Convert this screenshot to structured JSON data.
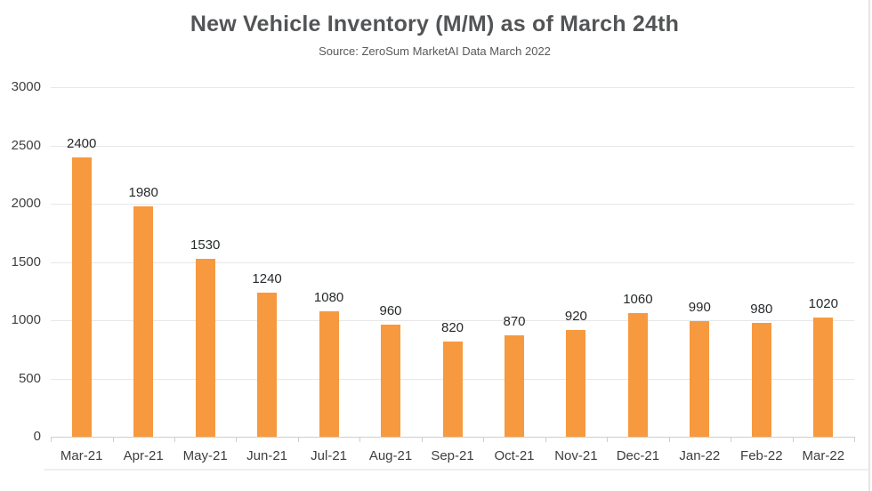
{
  "chart_data": {
    "type": "bar",
    "title": "New Vehicle Inventory (M/M) as of March 24th",
    "subtitle": "Source: ZeroSum MarketAI Data March 2022",
    "categories": [
      "Mar-21",
      "Apr-21",
      "May-21",
      "Jun-21",
      "Jul-21",
      "Aug-21",
      "Sep-21",
      "Oct-21",
      "Nov-21",
      "Dec-21",
      "Jan-22",
      "Feb-22",
      "Mar-22"
    ],
    "values": [
      2400,
      1980,
      1530,
      1240,
      1080,
      960,
      820,
      870,
      920,
      1060,
      990,
      980,
      1020
    ],
    "xlabel": "",
    "ylabel": "",
    "ylim": [
      0,
      3000
    ],
    "y_ticks": [
      0,
      500,
      1000,
      1500,
      2000,
      2500,
      3000
    ],
    "grid": true,
    "legend_position": "none",
    "data_labels": true,
    "bar_color": "#F7993E",
    "gridline_color": "#E7E7E7",
    "axis_line_color": "#CFCFCF",
    "title_color": "#535456",
    "value_label_color": "#26292B",
    "axis_text_color": "#3F4143"
  }
}
